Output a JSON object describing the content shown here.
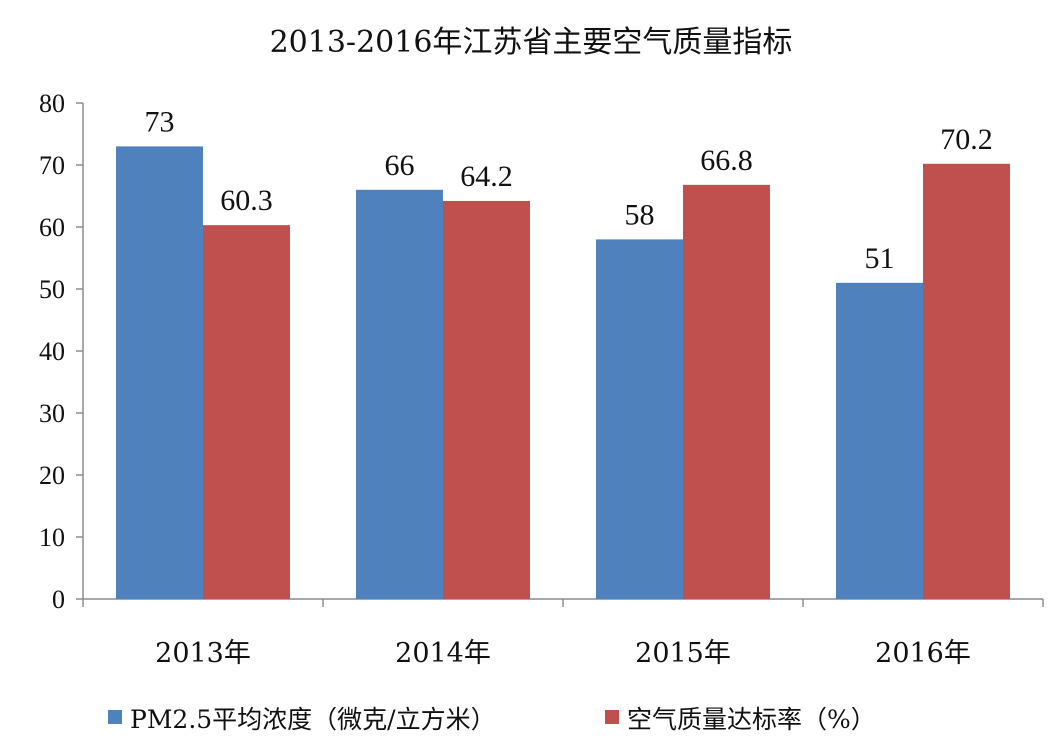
{
  "chart_data": {
    "type": "bar",
    "title": "2013-2016年江苏省主要空气质量指标",
    "xlabel": "",
    "ylabel": "",
    "categories": [
      "2013年",
      "2014年",
      "2015年",
      "2016年"
    ],
    "ylim": [
      0,
      80
    ],
    "yticks": [
      0,
      10,
      20,
      30,
      40,
      50,
      60,
      70,
      80
    ],
    "grid": false,
    "legend_position": "bottom",
    "series": [
      {
        "name": "PM2.5平均浓度（微克/立方米）",
        "color": "#4f81bd",
        "values": [
          73,
          66,
          58,
          51
        ],
        "labels": [
          "73",
          "66",
          "58",
          "51"
        ]
      },
      {
        "name": "空气质量达标率（%）",
        "color": "#c0504d",
        "values": [
          60.3,
          64.2,
          66.8,
          70.2
        ],
        "labels": [
          "60.3",
          "64.2",
          "66.8",
          "70.2"
        ]
      }
    ]
  }
}
